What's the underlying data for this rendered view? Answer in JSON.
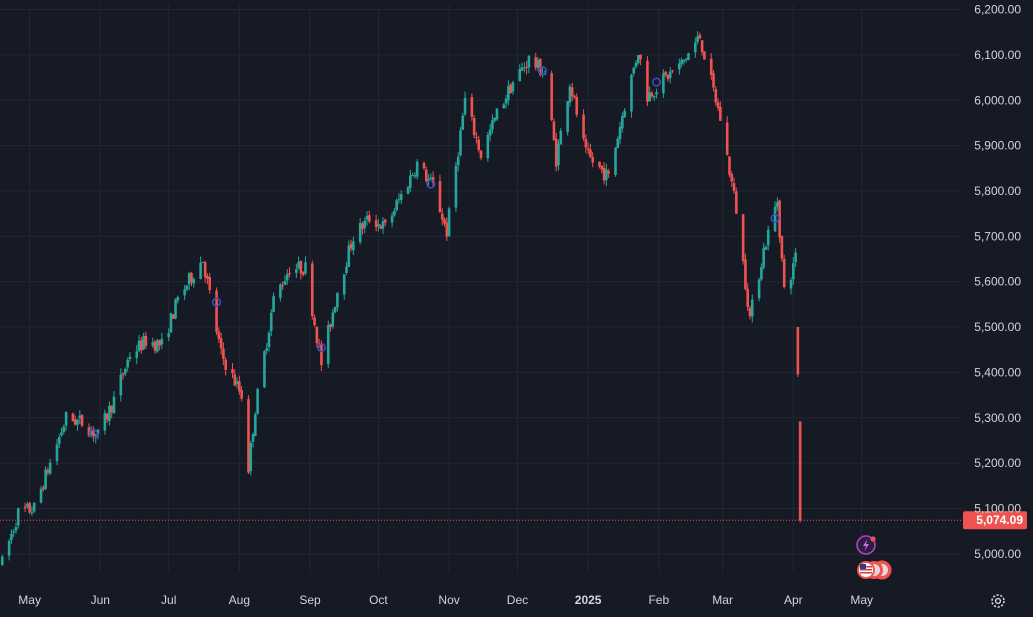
{
  "chart_data": {
    "type": "candlestick",
    "y_axis": {
      "ticks": [
        "6,200.00",
        "6,100.00",
        "6,000.00",
        "5,900.00",
        "5,800.00",
        "5,700.00",
        "5,600.00",
        "5,500.00",
        "5,400.00",
        "5,300.00",
        "5,200.00",
        "5,100.00",
        "5,000.00"
      ],
      "tick_values": [
        6200,
        6100,
        6000,
        5900,
        5800,
        5700,
        5600,
        5500,
        5400,
        5300,
        5200,
        5100,
        5000
      ],
      "range": [
        4960,
        6210
      ]
    },
    "x_axis": {
      "labels": [
        "May",
        "Jun",
        "Jul",
        "Aug",
        "Sep",
        "Oct",
        "Nov",
        "Dec",
        "2025",
        "Feb",
        "Mar",
        "Apr",
        "May"
      ],
      "label_dates": [
        "2024-05-01",
        "2024-06-01",
        "2024-07-01",
        "2024-08-01",
        "2024-09-01",
        "2024-10-01",
        "2024-11-01",
        "2024-12-01",
        "2025-01-01",
        "2025-02-01",
        "2025-03-01",
        "2025-04-01",
        "2025-05-01"
      ],
      "year_labels": [
        "2025"
      ],
      "range": [
        "2024-04-18",
        "2025-06-14"
      ]
    },
    "trend": [
      [
        "2024-04-19",
        4980
      ],
      [
        "2024-04-26",
        5090
      ],
      [
        "2024-05-03",
        5100
      ],
      [
        "2024-05-10",
        5200
      ],
      [
        "2024-05-17",
        5300
      ],
      [
        "2024-05-24",
        5290
      ],
      [
        "2024-05-31",
        5260
      ],
      [
        "2024-06-07",
        5340
      ],
      [
        "2024-06-14",
        5440
      ],
      [
        "2024-06-21",
        5470
      ],
      [
        "2024-06-28",
        5460
      ],
      [
        "2024-07-05",
        5560
      ],
      [
        "2024-07-12",
        5620
      ],
      [
        "2024-07-16",
        5650
      ],
      [
        "2024-07-24",
        5440
      ],
      [
        "2024-08-02",
        5350
      ],
      [
        "2024-08-05",
        5190
      ],
      [
        "2024-08-08",
        5320
      ],
      [
        "2024-08-16",
        5560
      ],
      [
        "2024-08-23",
        5630
      ],
      [
        "2024-08-30",
        5630
      ],
      [
        "2024-09-06",
        5420
      ],
      [
        "2024-09-13",
        5580
      ],
      [
        "2024-09-20",
        5700
      ],
      [
        "2024-09-27",
        5740
      ],
      [
        "2024-10-04",
        5720
      ],
      [
        "2024-10-11",
        5790
      ],
      [
        "2024-10-18",
        5860
      ],
      [
        "2024-10-25",
        5810
      ],
      [
        "2024-10-31",
        5710
      ],
      [
        "2024-11-08",
        6000
      ],
      [
        "2024-11-15",
        5880
      ],
      [
        "2024-11-22",
        5970
      ],
      [
        "2024-11-29",
        6040
      ],
      [
        "2024-12-06",
        6090
      ],
      [
        "2024-12-13",
        6060
      ],
      [
        "2024-12-18",
        5870
      ],
      [
        "2024-12-24",
        6040
      ],
      [
        "2024-12-31",
        5880
      ],
      [
        "2025-01-10",
        5830
      ],
      [
        "2025-01-17",
        5990
      ],
      [
        "2025-01-23",
        6110
      ],
      [
        "2025-01-27",
        6010
      ],
      [
        "2025-02-04",
        6050
      ],
      [
        "2025-02-11",
        6080
      ],
      [
        "2025-02-19",
        6140
      ],
      [
        "2025-02-28",
        5960
      ],
      [
        "2025-03-07",
        5760
      ],
      [
        "2025-03-13",
        5520
      ],
      [
        "2025-03-19",
        5670
      ],
      [
        "2025-03-25",
        5780
      ],
      [
        "2025-03-28",
        5580
      ],
      [
        "2025-04-01",
        5630
      ],
      [
        "2025-04-02",
        5670
      ],
      [
        "2025-04-03",
        5400
      ],
      [
        "2025-04-04",
        5074.09
      ]
    ],
    "last_candles": [
      {
        "date": "2025-04-03",
        "open": 5500,
        "high": 5500,
        "low": 5390,
        "close": 5396,
        "direction": "down"
      },
      {
        "date": "2025-04-04",
        "open": 5292,
        "high": 5292,
        "low": 5069,
        "close": 5074.09,
        "direction": "down"
      }
    ],
    "markers": [
      {
        "date": "2024-05-29",
        "value": 5265
      },
      {
        "date": "2024-07-22",
        "value": 5555
      },
      {
        "date": "2024-09-06",
        "value": 5455
      },
      {
        "date": "2024-10-24",
        "value": 5815
      },
      {
        "date": "2024-12-12",
        "value": 6065
      },
      {
        "date": "2025-01-31",
        "value": 6040
      },
      {
        "date": "2025-03-24",
        "value": 5740
      }
    ],
    "last_price": 5074.09,
    "last_price_label": "5,074.09",
    "colors": {
      "up": "#26a69a",
      "down": "#ef5350",
      "background": "#161a25",
      "grid": "#232733",
      "marker": "#3b4db8",
      "price_line": "#ef5350",
      "lightning": "#9c27b0"
    },
    "grid": true
  },
  "icons": {
    "lightning_badge": "lightning-bolt-icon",
    "flag_badges": "us-flag-icon",
    "settings": "gear-icon"
  }
}
